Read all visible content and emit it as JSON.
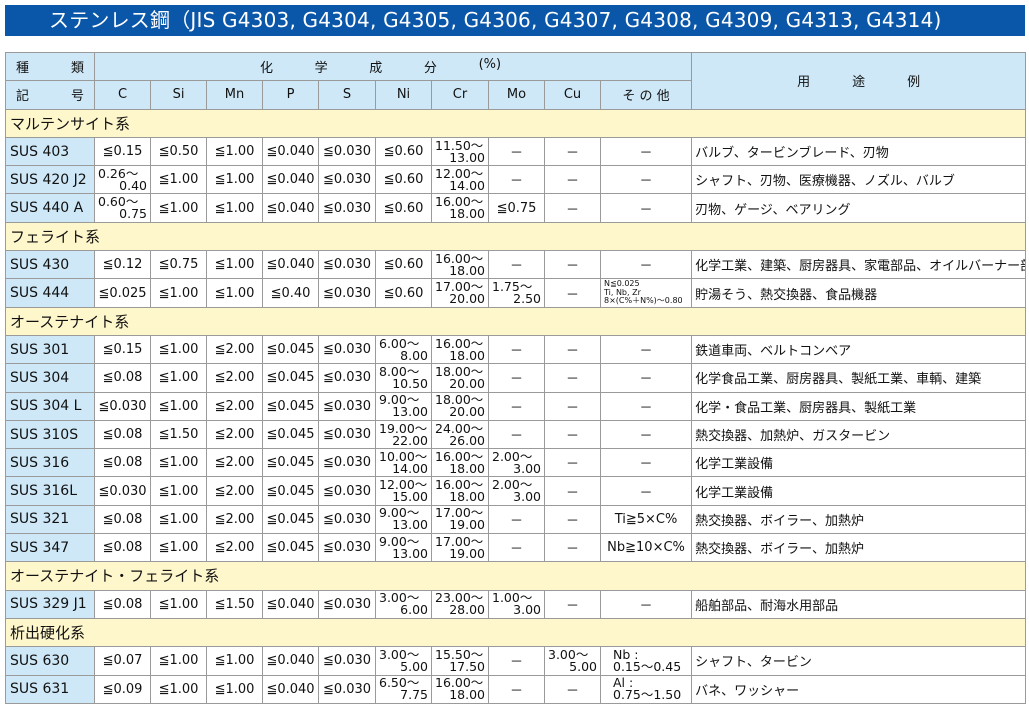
{
  "title": "ステンレス鋼（JIS G4303, G4304, G4305, G4306, G4307, G4308, G4309, G4313, G4314)",
  "header": {
    "kind_top": [
      "種",
      "類"
    ],
    "kind_bottom": [
      "記",
      "号"
    ],
    "chem": [
      "化",
      "学",
      "成",
      "分",
      "(%)"
    ],
    "columns": [
      "C",
      "Si",
      "Mn",
      "P",
      "S",
      "Ni",
      "Cr",
      "Mo",
      "Cu",
      "そ の 他"
    ],
    "use": [
      "用",
      "途",
      "例"
    ]
  },
  "colors": {
    "title_bg": "#0a56a8",
    "header_bg": "#cfe8f7",
    "category_bg": "#fff7cc"
  },
  "groups": [
    {
      "name": "マルテンサイト系",
      "rows": [
        {
          "grade": "SUS 403",
          "cells": [
            "≦0.15",
            "≦0.50",
            "≦1.00",
            "≦0.040",
            "≦0.030",
            "≦0.60",
            {
              "lo": "11.50～",
              "hi": "13.00"
            },
            "－",
            "－",
            "－"
          ],
          "use": "バルブ、タービンブレード、刃物"
        },
        {
          "grade": "SUS 420 J2",
          "cells": [
            {
              "lo": "0.26～",
              "hi": "0.40"
            },
            "≦1.00",
            "≦1.00",
            "≦0.040",
            "≦0.030",
            "≦0.60",
            {
              "lo": "12.00～",
              "hi": "14.00"
            },
            "－",
            "－",
            "－"
          ],
          "use": "シャフト、刃物、医療機器、ノズル、バルブ"
        },
        {
          "grade": "SUS 440 A",
          "cells": [
            {
              "lo": "0.60～",
              "hi": "0.75"
            },
            "≦1.00",
            "≦1.00",
            "≦0.040",
            "≦0.030",
            "≦0.60",
            {
              "lo": "16.00～",
              "hi": "18.00"
            },
            "≦0.75",
            "－",
            "－"
          ],
          "use": "刃物、ゲージ、ベアリング"
        }
      ]
    },
    {
      "name": "フェライト系",
      "rows": [
        {
          "grade": "SUS 430",
          "cells": [
            "≦0.12",
            "≦0.75",
            "≦1.00",
            "≦0.040",
            "≦0.030",
            "≦0.60",
            {
              "lo": "16.00～",
              "hi": "18.00"
            },
            "－",
            "－",
            "－"
          ],
          "use": "化学工業、建築、厨房器具、家電部品、オイルバーナー部品"
        },
        {
          "grade": "SUS 444",
          "cells": [
            "≦0.025",
            "≦1.00",
            "≦1.00",
            "≦0.40",
            "≦0.030",
            "≦0.60",
            {
              "lo": "17.00～",
              "hi": "20.00"
            },
            {
              "lo": "1.75～",
              "hi": "2.50"
            },
            "－",
            {
              "small": [
                "N≦0.025",
                "Ti, Nb, Zr",
                "8×(C%＋N%)～0.80"
              ]
            }
          ],
          "use": "貯湯そう、熱交換器、食品機器"
        }
      ]
    },
    {
      "name": "オーステナイト系",
      "rows": [
        {
          "grade": "SUS 301",
          "cells": [
            "≦0.15",
            "≦1.00",
            "≦2.00",
            "≦0.045",
            "≦0.030",
            {
              "lo": "6.00～",
              "hi": "8.00"
            },
            {
              "lo": "16.00～",
              "hi": "18.00"
            },
            "－",
            "－",
            "－"
          ],
          "use": "鉄道車両、ベルトコンベア"
        },
        {
          "grade": "SUS 304",
          "cells": [
            "≦0.08",
            "≦1.00",
            "≦2.00",
            "≦0.045",
            "≦0.030",
            {
              "lo": "8.00～",
              "hi": "10.50"
            },
            {
              "lo": "18.00～",
              "hi": "20.00"
            },
            "－",
            "－",
            "－"
          ],
          "use": "化学食品工業、厨房器具、製紙工業、車輌、建築"
        },
        {
          "grade": "SUS 304 L",
          "cells": [
            "≦0.030",
            "≦1.00",
            "≦2.00",
            "≦0.045",
            "≦0.030",
            {
              "lo": "9.00～",
              "hi": "13.00"
            },
            {
              "lo": "18.00～",
              "hi": "20.00"
            },
            "－",
            "－",
            "－"
          ],
          "use": "化学・食品工業、厨房器具、製紙工業"
        },
        {
          "grade": "SUS 310S",
          "cells": [
            "≦0.08",
            "≦1.50",
            "≦2.00",
            "≦0.045",
            "≦0.030",
            {
              "lo": "19.00～",
              "hi": "22.00"
            },
            {
              "lo": "24.00～",
              "hi": "26.00"
            },
            "－",
            "－",
            "－"
          ],
          "use": "熱交換器、加熱炉、ガスタービン"
        },
        {
          "grade": "SUS 316",
          "cells": [
            "≦0.08",
            "≦1.00",
            "≦2.00",
            "≦0.045",
            "≦0.030",
            {
              "lo": "10.00～",
              "hi": "14.00"
            },
            {
              "lo": "16.00～",
              "hi": "18.00"
            },
            {
              "lo": "2.00～",
              "hi": "3.00"
            },
            "－",
            "－"
          ],
          "use": "化学工業設備"
        },
        {
          "grade": "SUS 316L",
          "cells": [
            "≦0.030",
            "≦1.00",
            "≦2.00",
            "≦0.045",
            "≦0.030",
            {
              "lo": "12.00～",
              "hi": "15.00"
            },
            {
              "lo": "16.00～",
              "hi": "18.00"
            },
            {
              "lo": "2.00～",
              "hi": "3.00"
            },
            "－",
            "－"
          ],
          "use": "化学工業設備"
        },
        {
          "grade": "SUS 321",
          "cells": [
            "≦0.08",
            "≦1.00",
            "≦2.00",
            "≦0.045",
            "≦0.030",
            {
              "lo": "9.00～",
              "hi": "13.00"
            },
            {
              "lo": "17.00～",
              "hi": "19.00"
            },
            "－",
            "－",
            "Ti≧5×C%"
          ],
          "use": "熱交換器、ボイラー、加熱炉"
        },
        {
          "grade": "SUS 347",
          "cells": [
            "≦0.08",
            "≦1.00",
            "≦2.00",
            "≦0.045",
            "≦0.030",
            {
              "lo": "9.00～",
              "hi": "13.00"
            },
            {
              "lo": "17.00～",
              "hi": "19.00"
            },
            "－",
            "－",
            "Nb≧10×C%"
          ],
          "use": "熱交換器、ボイラー、加熱炉"
        }
      ]
    },
    {
      "name": "オーステナイト・フェライト系",
      "rows": [
        {
          "grade": "SUS 329 J1",
          "cells": [
            "≦0.08",
            "≦1.00",
            "≦1.50",
            "≦0.040",
            "≦0.030",
            {
              "lo": "3.00～",
              "hi": "6.00"
            },
            {
              "lo": "23.00～",
              "hi": "28.00"
            },
            {
              "lo": "1.00～",
              "hi": "3.00"
            },
            "－",
            "－"
          ],
          "use": "船舶部品、耐海水用部品"
        }
      ]
    },
    {
      "name": "析出硬化系",
      "rows": [
        {
          "grade": "SUS 630",
          "cells": [
            "≦0.07",
            "≦1.00",
            "≦1.00",
            "≦0.040",
            "≦0.030",
            {
              "lo": "3.00～",
              "hi": "5.00"
            },
            {
              "lo": "15.50～",
              "hi": "17.50"
            },
            "－",
            {
              "lo": "3.00～",
              "hi": "5.00"
            },
            {
              "lines": [
                "Nb :",
                "0.15～0.45"
              ]
            }
          ],
          "use": "シャフト、タービン"
        },
        {
          "grade": "SUS 631",
          "cells": [
            "≦0.09",
            "≦1.00",
            "≦1.00",
            "≦0.040",
            "≦0.030",
            {
              "lo": "6.50～",
              "hi": "7.75"
            },
            {
              "lo": "16.00～",
              "hi": "18.00"
            },
            "－",
            "－",
            {
              "lines": [
                "Al :",
                "0.75～1.50"
              ]
            }
          ],
          "use": "バネ、ワッシャー"
        }
      ]
    }
  ]
}
